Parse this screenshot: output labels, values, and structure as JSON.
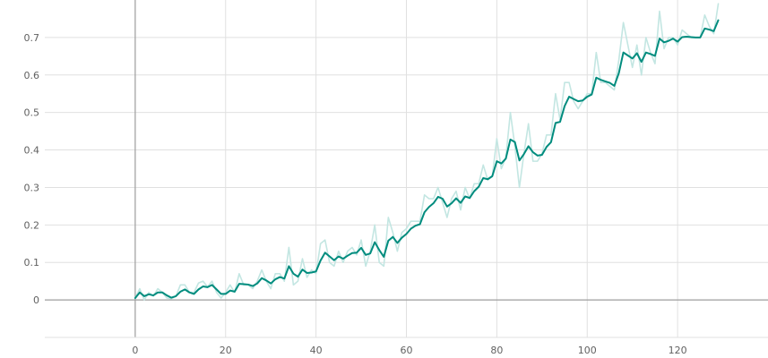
{
  "colors": {
    "main": "#008c7e",
    "raw": "#c3e6e2",
    "grid": "#e0e0e0",
    "axis": "#9e9e9e",
    "label": "#616161"
  },
  "chart_data": {
    "type": "line",
    "title": "",
    "xlabel": "",
    "ylabel": "",
    "xlim": [
      -20,
      140
    ],
    "ylim": [
      -0.1,
      0.8
    ],
    "grid": true,
    "legend": "none",
    "x_ticks": [
      0,
      20,
      40,
      60,
      80,
      100,
      120
    ],
    "x_tick_labels": [
      "0",
      "20",
      "40",
      "60",
      "80",
      "100",
      "120"
    ],
    "y_ticks": [
      0,
      0.1,
      0.2,
      0.3,
      0.4,
      0.5,
      0.6,
      0.7
    ],
    "y_tick_labels": [
      "0",
      "0.1",
      "0.2",
      "0.3",
      "0.4",
      "0.5",
      "0.6",
      "0.7"
    ],
    "series": [
      {
        "x": [
          0,
          1,
          2,
          3,
          4,
          5,
          6,
          7,
          8,
          9,
          10,
          11,
          12,
          13,
          14,
          15,
          16,
          17,
          18,
          19,
          20,
          21,
          22,
          23,
          24,
          25,
          26,
          27,
          28,
          29,
          30,
          31,
          32,
          33,
          34,
          35,
          36,
          37,
          38,
          39,
          40,
          41,
          42,
          43,
          44,
          45,
          46,
          47,
          48,
          49,
          50,
          51,
          52,
          53,
          54,
          55,
          56,
          57,
          58,
          59,
          60,
          61,
          62,
          63,
          64,
          65,
          66,
          67,
          68,
          69,
          70,
          71,
          72,
          73,
          74,
          75,
          76,
          77,
          78,
          79,
          80,
          81,
          82,
          83,
          84,
          85,
          86,
          87,
          88,
          89,
          90,
          91,
          92,
          93,
          94,
          95,
          96,
          97,
          98,
          99,
          100,
          101,
          102,
          103,
          104,
          105,
          106,
          107,
          108,
          109,
          110,
          111,
          112,
          113,
          114,
          115,
          116,
          117,
          118,
          119,
          120,
          121,
          122,
          123,
          124,
          125,
          126,
          127,
          128,
          129
        ],
        "values": [
          0.005,
          0.03,
          0.0,
          0.02,
          0.01,
          0.03,
          0.02,
          0.005,
          0.003,
          0.01,
          0.04,
          0.04,
          0.02,
          0.02,
          0.045,
          0.05,
          0.035,
          0.05,
          0.02,
          0.005,
          0.02,
          0.04,
          0.02,
          0.07,
          0.04,
          0.04,
          0.03,
          0.05,
          0.08,
          0.05,
          0.03,
          0.07,
          0.07,
          0.05,
          0.14,
          0.04,
          0.05,
          0.11,
          0.06,
          0.08,
          0.07,
          0.15,
          0.16,
          0.1,
          0.09,
          0.13,
          0.1,
          0.13,
          0.14,
          0.12,
          0.16,
          0.09,
          0.13,
          0.2,
          0.1,
          0.09,
          0.22,
          0.18,
          0.13,
          0.18,
          0.19,
          0.21,
          0.21,
          0.21,
          0.28,
          0.27,
          0.27,
          0.3,
          0.26,
          0.22,
          0.27,
          0.29,
          0.24,
          0.3,
          0.27,
          0.31,
          0.31,
          0.36,
          0.32,
          0.33,
          0.43,
          0.35,
          0.38,
          0.5,
          0.41,
          0.3,
          0.39,
          0.47,
          0.37,
          0.37,
          0.39,
          0.44,
          0.44,
          0.55,
          0.48,
          0.58,
          0.58,
          0.53,
          0.51,
          0.53,
          0.55,
          0.55,
          0.66,
          0.58,
          0.58,
          0.57,
          0.56,
          0.64,
          0.74,
          0.68,
          0.62,
          0.68,
          0.6,
          0.7,
          0.66,
          0.63,
          0.77,
          0.67,
          0.7,
          0.7,
          0.68,
          0.72,
          0.71,
          0.7,
          0.7,
          0.7,
          0.76,
          0.73,
          0.71,
          0.79
        ]
      },
      {
        "x": [
          0,
          1,
          2,
          3,
          4,
          5,
          6,
          7,
          8,
          9,
          10,
          11,
          12,
          13,
          14,
          15,
          16,
          17,
          18,
          19,
          20,
          21,
          22,
          23,
          24,
          25,
          26,
          27,
          28,
          29,
          30,
          31,
          32,
          33,
          34,
          35,
          36,
          37,
          38,
          39,
          40,
          41,
          42,
          43,
          44,
          45,
          46,
          47,
          48,
          49,
          50,
          51,
          52,
          53,
          54,
          55,
          56,
          57,
          58,
          59,
          60,
          61,
          62,
          63,
          64,
          65,
          66,
          67,
          68,
          69,
          70,
          71,
          72,
          73,
          74,
          75,
          76,
          77,
          78,
          79,
          80,
          81,
          82,
          83,
          84,
          85,
          86,
          87,
          88,
          89,
          90,
          91,
          92,
          93,
          94,
          95,
          96,
          97,
          98,
          99,
          100,
          101,
          102,
          103,
          104,
          105,
          106,
          107,
          108,
          109,
          110,
          111,
          112,
          113,
          114,
          115,
          116,
          117,
          118,
          119,
          120,
          121,
          122,
          123,
          124,
          125,
          126,
          127,
          128,
          129
        ],
        "values": [
          0.005,
          0.02,
          0.01,
          0.015,
          0.012,
          0.02,
          0.02,
          0.012,
          0.006,
          0.01,
          0.022,
          0.028,
          0.02,
          0.016,
          0.028,
          0.036,
          0.034,
          0.04,
          0.028,
          0.016,
          0.016,
          0.025,
          0.022,
          0.043,
          0.042,
          0.041,
          0.037,
          0.044,
          0.058,
          0.052,
          0.044,
          0.055,
          0.061,
          0.057,
          0.09,
          0.07,
          0.062,
          0.081,
          0.072,
          0.073,
          0.076,
          0.105,
          0.126,
          0.116,
          0.106,
          0.116,
          0.11,
          0.118,
          0.125,
          0.126,
          0.139,
          0.12,
          0.124,
          0.154,
          0.133,
          0.115,
          0.158,
          0.168,
          0.152,
          0.166,
          0.176,
          0.19,
          0.198,
          0.202,
          0.234,
          0.248,
          0.258,
          0.275,
          0.27,
          0.249,
          0.258,
          0.271,
          0.259,
          0.276,
          0.272,
          0.29,
          0.302,
          0.325,
          0.322,
          0.33,
          0.37,
          0.364,
          0.377,
          0.428,
          0.421,
          0.372,
          0.389,
          0.41,
          0.394,
          0.385,
          0.387,
          0.408,
          0.421,
          0.472,
          0.475,
          0.517,
          0.542,
          0.536,
          0.53,
          0.532,
          0.542,
          0.548,
          0.593,
          0.587,
          0.583,
          0.579,
          0.571,
          0.605,
          0.66,
          0.652,
          0.644,
          0.658,
          0.635,
          0.66,
          0.656,
          0.651,
          0.697,
          0.687,
          0.691,
          0.697,
          0.689,
          0.701,
          0.702,
          0.701,
          0.7,
          0.7,
          0.724,
          0.721,
          0.717,
          0.746
        ]
      }
    ]
  }
}
